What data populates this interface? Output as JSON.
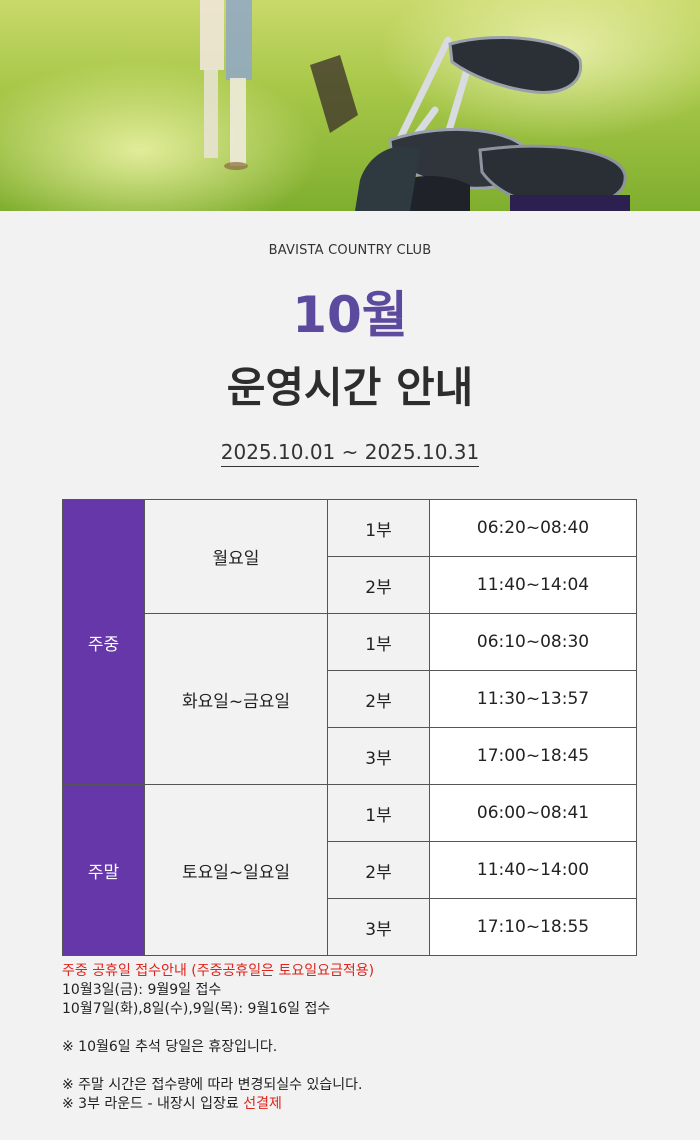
{
  "brand": "BAVISTA COUNTRY CLUB",
  "month": "10월",
  "title": "운영시간 안내",
  "period": "2025.10.01 ~ 2025.10.31",
  "schedule": {
    "weekday": {
      "label": "주중",
      "groups": [
        {
          "days": "월요일",
          "rows": [
            {
              "part": "1부",
              "time": "06:20~08:40"
            },
            {
              "part": "2부",
              "time": "11:40~14:04"
            }
          ]
        },
        {
          "days": "화요일~금요일",
          "rows": [
            {
              "part": "1부",
              "time": "06:10~08:30"
            },
            {
              "part": "2부",
              "time": "11:30~13:57"
            },
            {
              "part": "3부",
              "time": "17:00~18:45"
            }
          ]
        }
      ]
    },
    "weekend": {
      "label": "주말",
      "groups": [
        {
          "days": "토요일~일요일",
          "rows": [
            {
              "part": "1부",
              "time": "06:00~08:41"
            },
            {
              "part": "2부",
              "time": "11:40~14:00"
            },
            {
              "part": "3부",
              "time": "17:10~18:55"
            }
          ]
        }
      ]
    }
  },
  "notes": {
    "holiday_heading": "주중 공휴일 접수안내 (주중공휴일은 토요일요금적용)",
    "line1": "10월3일(금): 9월9일 접수",
    "line2": "10월7일(화),8일(수),9일(목): 9월16일 접수",
    "chuseok": "※ 10월6일 추석 당일은 휴장입니다.",
    "weekend_change": "※ 주말 시간은 접수량에 따라  변경되실수 있습니다.",
    "third_round_prefix": "※ 3부 라운드 - 내장시 입장료 ",
    "third_round_highlight": "선결제"
  },
  "colors": {
    "accent_purple": "#6637a9",
    "month_purple": "#5b4a9e",
    "notice_red": "#e0231b",
    "background": "#f2f2f2"
  },
  "hero": {
    "icon": "golf-clubs-photo"
  }
}
